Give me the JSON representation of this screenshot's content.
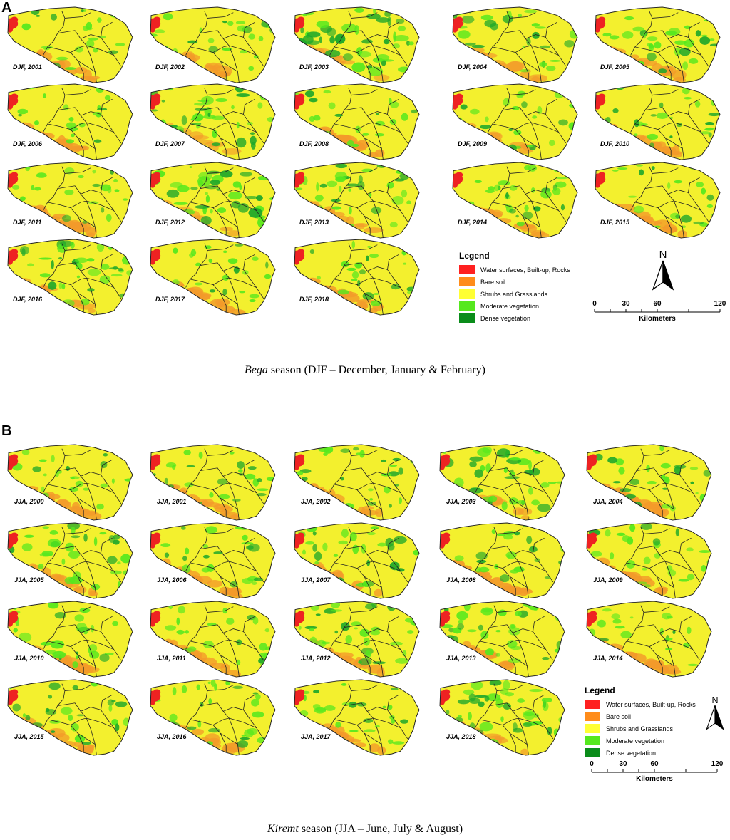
{
  "panels": [
    {
      "letter": "A",
      "season_name": "Bega",
      "caption_rest": " season (DJF – December, January & February)",
      "maps": [
        {
          "label": "DJF, 2001",
          "veg": 0.35,
          "bare": 0.6
        },
        {
          "label": "DJF, 2002",
          "veg": 0.3,
          "bare": 0.5
        },
        {
          "label": "DJF, 2003",
          "veg": 0.8,
          "bare": 0.2
        },
        {
          "label": "DJF, 2004",
          "veg": 0.55,
          "bare": 0.4
        },
        {
          "label": "DJF, 2005",
          "veg": 0.45,
          "bare": 0.5
        },
        {
          "label": "DJF, 2006",
          "veg": 0.3,
          "bare": 0.7
        },
        {
          "label": "DJF, 2007",
          "veg": 0.75,
          "bare": 0.2
        },
        {
          "label": "DJF, 2008",
          "veg": 0.3,
          "bare": 0.8
        },
        {
          "label": "DJF, 2009",
          "veg": 0.4,
          "bare": 0.4
        },
        {
          "label": "DJF, 2010",
          "veg": 0.35,
          "bare": 0.6
        },
        {
          "label": "DJF, 2011",
          "veg": 0.3,
          "bare": 0.7
        },
        {
          "label": "DJF, 2012",
          "veg": 0.75,
          "bare": 0.3
        },
        {
          "label": "DJF, 2013",
          "veg": 0.55,
          "bare": 0.4
        },
        {
          "label": "DJF, 2014",
          "veg": 0.5,
          "bare": 0.5
        },
        {
          "label": "DJF, 2015",
          "veg": 0.3,
          "bare": 0.6
        },
        {
          "label": "DJF, 2016",
          "veg": 0.6,
          "bare": 0.3
        },
        {
          "label": "DJF, 2017",
          "veg": 0.25,
          "bare": 0.7
        },
        {
          "label": "DJF, 2018",
          "veg": 0.35,
          "bare": 0.7
        }
      ]
    },
    {
      "letter": "B",
      "season_name": "Kiremt",
      "caption_rest": " season (JJA – June, July & August)",
      "maps": [
        {
          "label": "JJA, 2000",
          "veg": 0.3,
          "bare": 0.7
        },
        {
          "label": "JJA, 2001",
          "veg": 0.35,
          "bare": 0.6
        },
        {
          "label": "JJA, 2002",
          "veg": 0.4,
          "bare": 0.5
        },
        {
          "label": "JJA, 2003",
          "veg": 0.75,
          "bare": 0.3
        },
        {
          "label": "JJA, 2004",
          "veg": 0.4,
          "bare": 0.8
        },
        {
          "label": "JJA, 2005",
          "veg": 0.6,
          "bare": 0.5
        },
        {
          "label": "JJA, 2006",
          "veg": 0.45,
          "bare": 0.6
        },
        {
          "label": "JJA, 2007",
          "veg": 0.6,
          "bare": 0.6
        },
        {
          "label": "JJA, 2008",
          "veg": 0.35,
          "bare": 0.9
        },
        {
          "label": "JJA, 2009",
          "veg": 0.4,
          "bare": 0.7
        },
        {
          "label": "JJA, 2010",
          "veg": 0.6,
          "bare": 0.5
        },
        {
          "label": "JJA, 2011",
          "veg": 0.35,
          "bare": 0.6
        },
        {
          "label": "JJA, 2012",
          "veg": 0.6,
          "bare": 0.6
        },
        {
          "label": "JJA, 2013",
          "veg": 0.6,
          "bare": 0.5
        },
        {
          "label": "JJA, 2014",
          "veg": 0.3,
          "bare": 0.7
        },
        {
          "label": "JJA, 2015",
          "veg": 0.45,
          "bare": 0.5
        },
        {
          "label": "JJA, 2016",
          "veg": 0.45,
          "bare": 0.5
        },
        {
          "label": "JJA, 2017",
          "veg": 0.4,
          "bare": 0.6
        },
        {
          "label": "JJA, 2018",
          "veg": 0.75,
          "bare": 0.4
        }
      ]
    }
  ],
  "legend": {
    "title": "Legend",
    "items": [
      {
        "label": "Water surfaces, Built-up, Rocks",
        "color": "#ff2020"
      },
      {
        "label": "Bare soil",
        "color": "#ff8c1a"
      },
      {
        "label": "Shrubs and Grasslands",
        "color": "#ffff33"
      },
      {
        "label": "Moderate vegetation",
        "color": "#55e81e"
      },
      {
        "label": "Dense vegetation",
        "color": "#0a8c1a"
      }
    ]
  },
  "north_label": "N",
  "scale": {
    "ticks": [
      "0",
      "30",
      "60",
      "120"
    ],
    "tick_km": [
      0,
      30,
      60,
      120
    ],
    "unit": "Kilometers"
  },
  "colors": {
    "shrub_yellow": "#f3f02e",
    "moderate_green": "#55e81e",
    "dense_green": "#1fa82a",
    "bare_orange": "#f39a2a",
    "water_red": "#ee2222",
    "boundary": "#222222"
  }
}
